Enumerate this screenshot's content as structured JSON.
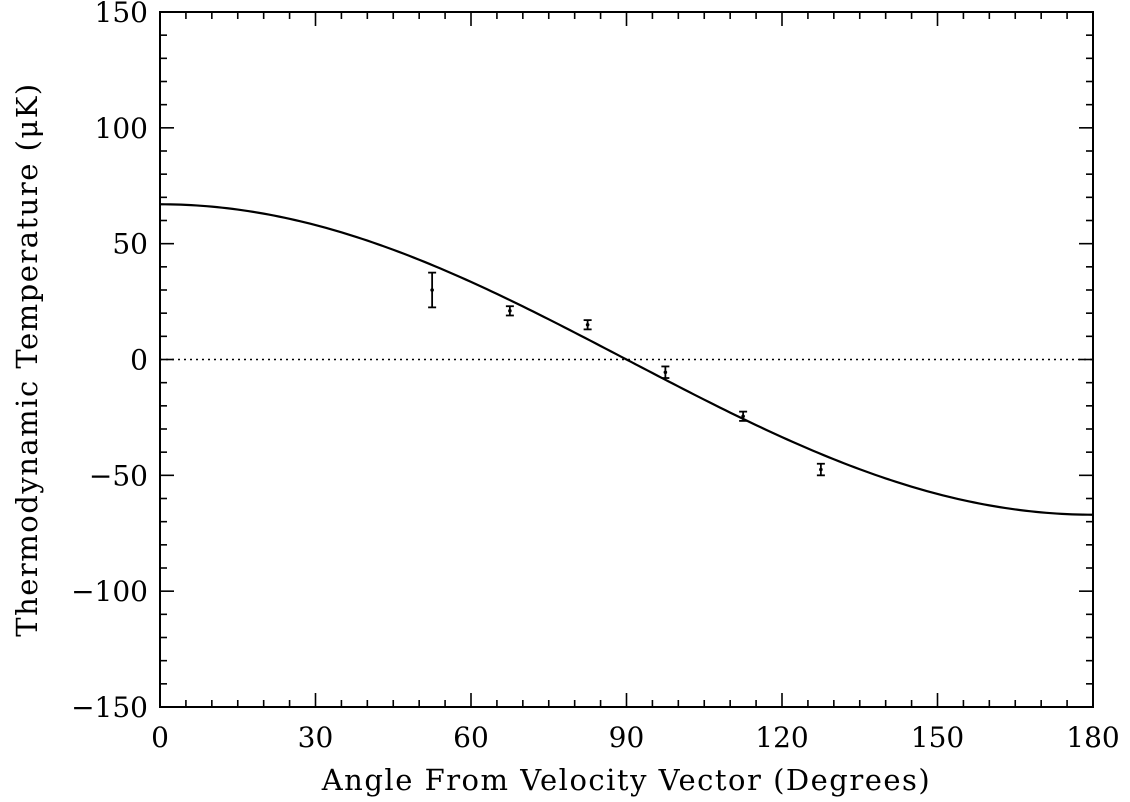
{
  "chart_data": {
    "type": "scatter",
    "title": "",
    "xlabel": "Angle From Velocity Vector (Degrees)",
    "ylabel": "Thermodynamic Temperature (μK)",
    "xlim": [
      0,
      180
    ],
    "ylim": [
      -150,
      150
    ],
    "x_ticks": [
      0,
      30,
      60,
      90,
      120,
      150,
      180
    ],
    "y_ticks": [
      -150,
      -100,
      -50,
      0,
      50,
      100,
      150
    ],
    "x_tick_labels": [
      "0",
      "30",
      "60",
      "90",
      "120",
      "150",
      "180"
    ],
    "y_tick_labels": [
      "−150",
      "−100",
      "−50",
      "0",
      "50",
      "100",
      "150"
    ],
    "grid": false,
    "reference_line": {
      "y": 0,
      "style": "dotted"
    },
    "model_curve": {
      "form": "A*cos(x)",
      "amplitude": 67,
      "x_range": [
        0,
        180
      ]
    },
    "points": [
      {
        "x": 52.5,
        "y": 30,
        "err": 7.5
      },
      {
        "x": 67.5,
        "y": 21,
        "err": 2
      },
      {
        "x": 82.5,
        "y": 15,
        "err": 2
      },
      {
        "x": 97.5,
        "y": -5.5,
        "err": 2.5
      },
      {
        "x": 112.5,
        "y": -24.5,
        "err": 2
      },
      {
        "x": 127.5,
        "y": -47.5,
        "err": 2.5
      }
    ]
  }
}
